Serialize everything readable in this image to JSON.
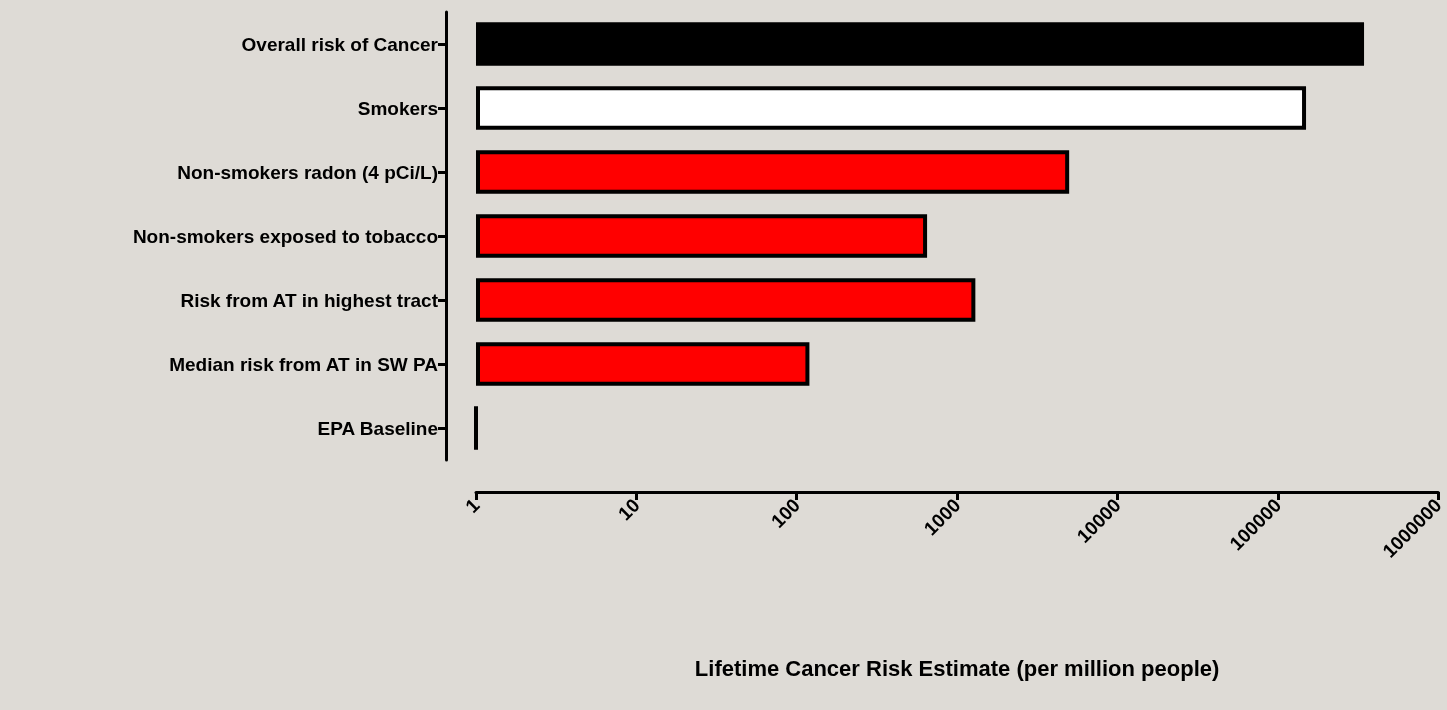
{
  "chart_data": {
    "type": "bar",
    "orientation": "horizontal",
    "log": "x",
    "categories": [
      "Overall risk of Cancer",
      "Smokers",
      "Non-smokers radon (4 pCi/L)",
      "Non-smokers exposed to tobacco",
      "Risk from AT in highest tract",
      "Median risk from AT in SW PA",
      "EPA Baseline"
    ],
    "values": [
      345000,
      150000,
      5000,
      650,
      1300,
      120,
      1
    ],
    "colors": [
      "#000000",
      "#ffffff",
      "#ff0000",
      "#ff0000",
      "#ff0000",
      "#ff0000",
      "#000000"
    ],
    "xlabel": "Lifetime Cancer Risk Estimate (per million people)",
    "xlim": [
      1,
      1000000
    ],
    "xticks": [
      1,
      10,
      100,
      1000,
      10000,
      100000,
      1000000
    ],
    "grid": false
  }
}
